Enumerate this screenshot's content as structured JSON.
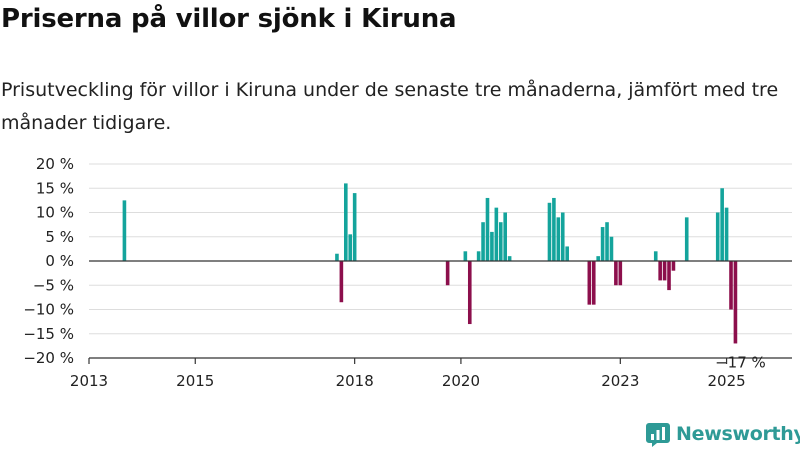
{
  "title": "Priserna på villor sjönk i Kiruna",
  "subtitle": "Prisutveckling för villor i Kiruna under de senaste tre månaderna, jämfört med tre månader tidigare.",
  "brand": {
    "name": "Newsworthy",
    "icon": "newsworthy-logo-icon"
  },
  "colors": {
    "positive": "#14a49c",
    "negative": "#8c0f4c",
    "grid": "#dddddd",
    "axis": "#333333"
  },
  "chart_data": {
    "type": "bar",
    "x_unit": "month",
    "y_unit": "%",
    "ylim": [
      -20,
      20
    ],
    "y_ticks": [
      -20,
      -15,
      -10,
      -5,
      0,
      5,
      10,
      15,
      20
    ],
    "y_tick_labels": [
      "−20 %",
      "−15 %",
      "−10 %",
      "−5 %",
      "0 %",
      "5 %",
      "10 %",
      "15 %",
      "20 %"
    ],
    "x_range": [
      "2013-01",
      "2025-09"
    ],
    "x_ticks": [
      "2013-01",
      "2015-01",
      "2018-01",
      "2020-01",
      "2023-01",
      "2025-01"
    ],
    "x_tick_labels": [
      "2013",
      "2015",
      "2018",
      "2020",
      "2023",
      "2025"
    ],
    "grid": "horizontal",
    "legend": "none",
    "points": [
      {
        "date": "2013-09",
        "value": 12.5
      },
      {
        "date": "2017-09",
        "value": 1.5
      },
      {
        "date": "2017-10",
        "value": -8.5
      },
      {
        "date": "2017-11",
        "value": 16
      },
      {
        "date": "2017-12",
        "value": 5.5
      },
      {
        "date": "2018-01",
        "value": 14
      },
      {
        "date": "2019-10",
        "value": -5
      },
      {
        "date": "2020-02",
        "value": 2
      },
      {
        "date": "2020-03",
        "value": -13
      },
      {
        "date": "2020-05",
        "value": 2
      },
      {
        "date": "2020-06",
        "value": 8
      },
      {
        "date": "2020-07",
        "value": 13
      },
      {
        "date": "2020-08",
        "value": 6
      },
      {
        "date": "2020-09",
        "value": 11
      },
      {
        "date": "2020-10",
        "value": 8
      },
      {
        "date": "2020-11",
        "value": 10
      },
      {
        "date": "2020-12",
        "value": 1
      },
      {
        "date": "2021-09",
        "value": 12
      },
      {
        "date": "2021-10",
        "value": 13
      },
      {
        "date": "2021-11",
        "value": 9
      },
      {
        "date": "2021-12",
        "value": 10
      },
      {
        "date": "2022-01",
        "value": 3
      },
      {
        "date": "2022-06",
        "value": -9
      },
      {
        "date": "2022-07",
        "value": -9
      },
      {
        "date": "2022-08",
        "value": 1
      },
      {
        "date": "2022-09",
        "value": 7
      },
      {
        "date": "2022-10",
        "value": 8
      },
      {
        "date": "2022-11",
        "value": 5
      },
      {
        "date": "2022-12",
        "value": -5
      },
      {
        "date": "2023-01",
        "value": -5
      },
      {
        "date": "2023-09",
        "value": 2
      },
      {
        "date": "2023-10",
        "value": -4
      },
      {
        "date": "2023-11",
        "value": -4
      },
      {
        "date": "2023-12",
        "value": -6
      },
      {
        "date": "2024-01",
        "value": -2
      },
      {
        "date": "2024-04",
        "value": 9
      },
      {
        "date": "2024-11",
        "value": 10
      },
      {
        "date": "2024-12",
        "value": 15
      },
      {
        "date": "2025-01",
        "value": 11
      },
      {
        "date": "2025-02",
        "value": -10
      },
      {
        "date": "2025-03",
        "value": -17
      }
    ],
    "annotations": [
      {
        "date": "2025-03",
        "value": -17,
        "text": "−17 %"
      }
    ]
  }
}
